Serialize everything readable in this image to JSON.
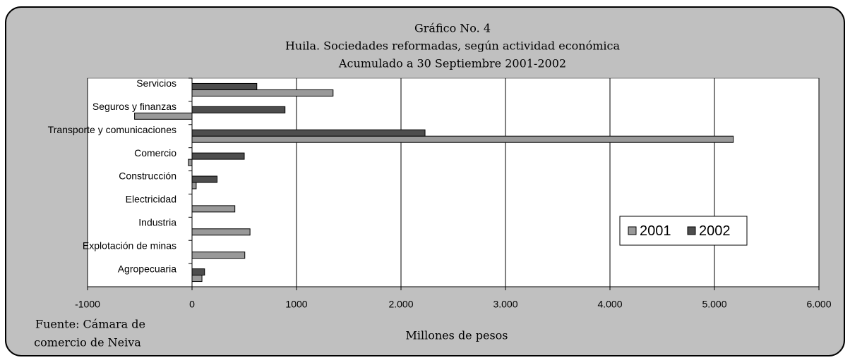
{
  "chart_data": {
    "type": "barh",
    "title": "Gráfico No. 4",
    "subtitle": [
      "Huila. Sociedades reformadas, según actividad económica",
      "Acumulado a 30 Septiembre 2001-2002"
    ],
    "xlabel": "Millones de pesos",
    "source": [
      "Fuente:  Cámara de",
      "comercio de Neiva"
    ],
    "categories": [
      "Servicios",
      "Seguros y finanzas",
      "Transporte y comunicaciones",
      "Comercio",
      "Construcción",
      "Electricidad",
      "Industria",
      "Explotación de minas",
      "Agropecuaria"
    ],
    "series": [
      {
        "name": "2001",
        "color": "#999999",
        "values": [
          1350,
          -550,
          5180,
          -35,
          40,
          410,
          555,
          505,
          95
        ]
      },
      {
        "name": "2002",
        "color": "#4d4d4d",
        "values": [
          620,
          890,
          2230,
          500,
          240,
          null,
          null,
          null,
          120
        ]
      }
    ],
    "xlim": [
      -1000,
      6000
    ],
    "xticks": [
      -1000,
      0,
      1000,
      {
        "value": 2000,
        "label": "2.000"
      },
      {
        "value": 3000,
        "label": "3.000"
      },
      {
        "value": 4000,
        "label": "4.000"
      },
      {
        "value": 5000,
        "label": "5.000"
      },
      {
        "value": 6000,
        "label": "6.000"
      }
    ],
    "grid": true,
    "legend": "right"
  }
}
